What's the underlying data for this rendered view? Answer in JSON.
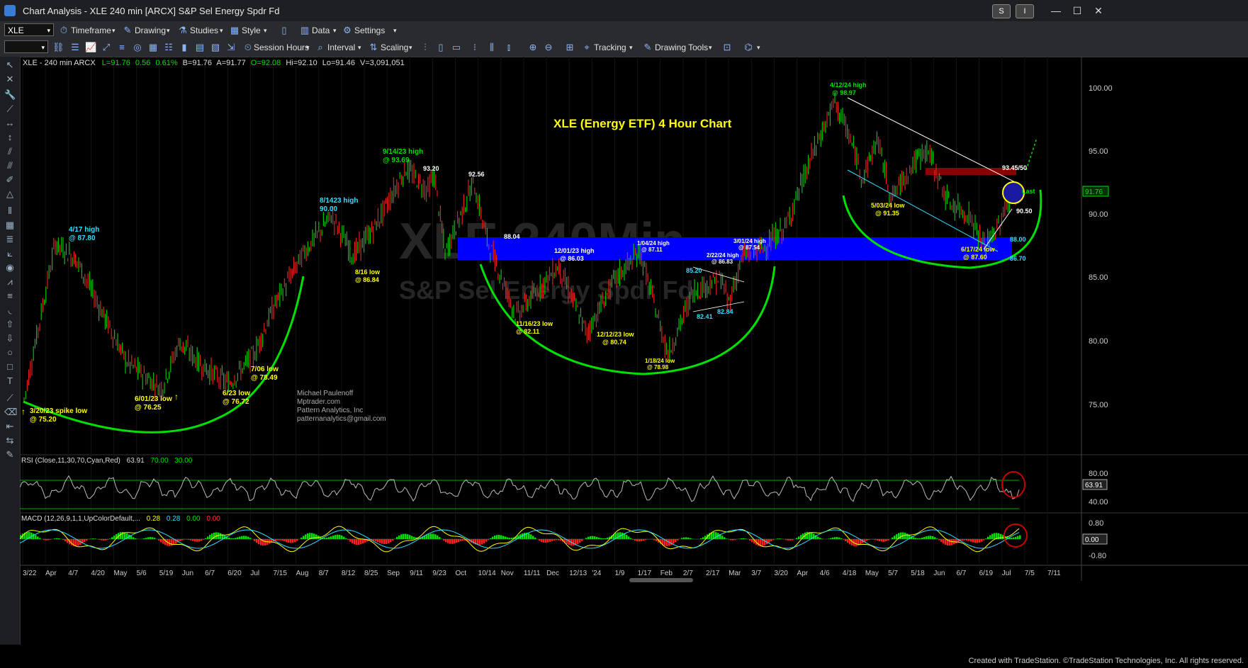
{
  "window": {
    "title": "Chart Analysis - XLE 240 min [ARCX] S&P Sel Energy Spdr Fd",
    "btn_s": "S",
    "btn_i": "I"
  },
  "toolbar1": {
    "symbol": "XLE",
    "timeframe": "Timeframe",
    "drawing": "Drawing",
    "studies": "Studies",
    "style": "Style",
    "data": "Data",
    "settings": "Settings"
  },
  "toolbar2": {
    "session_hours": "Session Hours",
    "interval": "Interval",
    "scaling": "Scaling",
    "tracking": "Tracking",
    "drawing_tools": "Drawing Tools"
  },
  "chart_header": {
    "symbol_line": "XLE - 240 min  ARCX",
    "last": "L=91.76",
    "change": "0.56",
    "pct": "0.61%",
    "bid": "B=91.76",
    "ask": "A=91.77",
    "open": "O=92.08",
    "high": "Hi=92.10",
    "low": "Lo=91.46",
    "volume": "V=3,091,051"
  },
  "watermark": {
    "line1": "XLE 240Min",
    "line2": "S&P Sel Energy Spdr Fd"
  },
  "chart_title": "XLE (Energy ETF) 4 Hour Chart",
  "author": {
    "name": "Michael Paulenoff",
    "site": "Mptrader.com",
    "company": "Pattern Analytics, Inc",
    "email": "patternanalytics@gmail.com"
  },
  "price_axis": {
    "ticks": [
      "100.00",
      "95.00",
      "90.00",
      "85.00",
      "80.00",
      "75.00"
    ],
    "last": "91.76"
  },
  "rsi": {
    "label": "RSI (Close,11,30,70,Cyan,Red)",
    "value": "63.91",
    "upper": "70.00",
    "lower": "30.00",
    "ticks": [
      "80.00",
      "40.00"
    ],
    "last": "63.91"
  },
  "macd": {
    "label": "MACD (12,26,9,1,1,UpColorDefault,...",
    "v1": "0.28",
    "v2": "0.28",
    "v3": "0.00",
    "v4": "0.00",
    "ticks": [
      "0.80",
      "0.00",
      "-0.80"
    ],
    "last": "0.00"
  },
  "date_axis": [
    "3/22",
    "Apr",
    "4/7",
    "4/20",
    "May",
    "5/6",
    "5/19",
    "Jun",
    "6/7",
    "6/20",
    "Jul",
    "7/15",
    "Aug",
    "8/7",
    "8/12",
    "8/25",
    "Sep",
    "9/11",
    "9/23",
    "Oct",
    "10/14",
    "Nov",
    "11/11",
    "Dec",
    "12/13",
    "'24",
    "1/9",
    "1/17",
    "Feb",
    "2/7",
    "2/17",
    "Mar",
    "3/7",
    "3/20",
    "Apr",
    "4/6",
    "4/18",
    "May",
    "5/7",
    "5/18",
    "Jun",
    "6/7",
    "6/19",
    "Jul",
    "7/5",
    "7/11"
  ],
  "annotations": {
    "a1": "3/20/23 spike low",
    "a1b": "@ 75.20",
    "a2": "4/17 high",
    "a2b": "@ 87.80",
    "a3": "6/01/23 low",
    "a3b": "@ 76.25",
    "a4": "6/23 low",
    "a4b": "@ 76.72",
    "a5": "7/06 low",
    "a5b": "@ 78.49",
    "a6": "8/1423 high",
    "a6b": "90.00",
    "a7": "8/16 low",
    "a7b": "@ 86.84",
    "a8": "9/14/23 high",
    "a8b": "@ 93.69",
    "a9": "93.20",
    "a10": "92.56",
    "a11": "88.04",
    "a12": "11/16/23 low",
    "a12b": "@ 82.11",
    "a13": "12/01/23 high",
    "a13b": "@ 86.03",
    "a14": "12/12/23 low",
    "a14b": "@ 80.74",
    "a15": "1/04/24 high",
    "a15b": "@ 87.11",
    "a16": "1/18/24 low",
    "a16b": "@ 78.98",
    "a17": "2/22/24 high",
    "a17b": "@ 86.83",
    "a18": "3/01/24 high",
    "a18b": "@ 87.54",
    "a19": "85.20",
    "a20": "82.41",
    "a21": "82.84",
    "a22": "4/12/24 high",
    "a22b": "@ 98.97",
    "a23": "5/03/24 low",
    "a23b": "@ 91.35",
    "a24": "93.45/50",
    "a25": "Last",
    "a26": "90.50",
    "a27": "6/17/24 low",
    "a27b": "@ 87.60",
    "a28": "88.00",
    "a29": "86.70"
  },
  "footer": "Created with TradeStation. ©TradeStation Technologies, Inc. All rights reserved.",
  "colors": {
    "green": "#00e000",
    "yellow": "#ffff00",
    "cyan": "#33ddff",
    "white": "#ffffff",
    "blue_zone": "#0000ff",
    "red_zone": "#8b0000"
  }
}
